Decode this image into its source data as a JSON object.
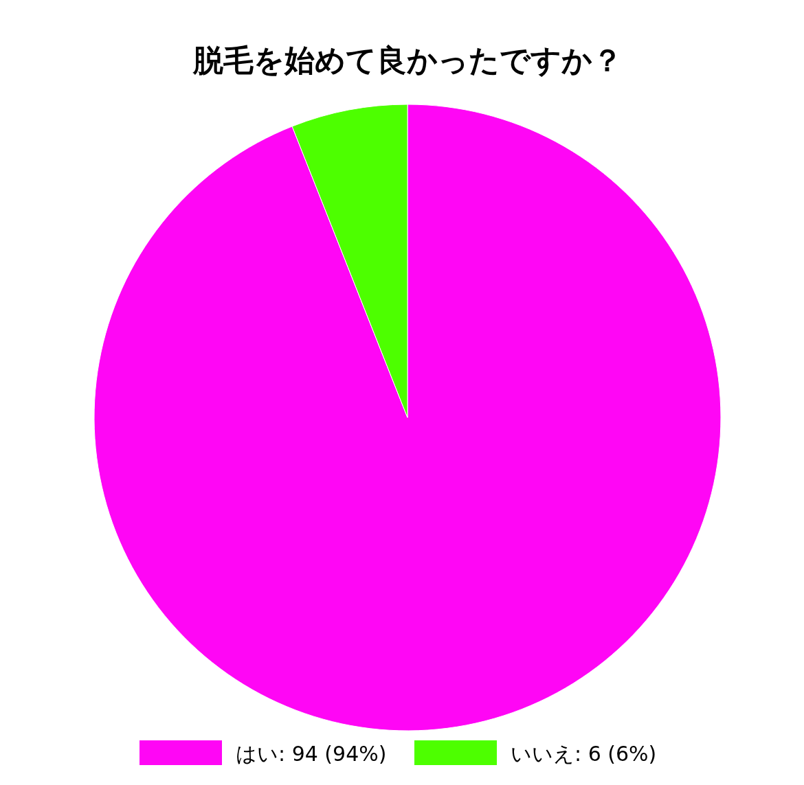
{
  "chart_data": {
    "type": "pie",
    "title": "脱毛を始めて良かったですか？",
    "categories": [
      "はい",
      "いいえ"
    ],
    "values": [
      94,
      6
    ],
    "colors": [
      "#ff06f5",
      "#4dff00"
    ],
    "value_labels": [
      "94 (94%)",
      "6 (6%)"
    ],
    "legend": "bottom"
  }
}
